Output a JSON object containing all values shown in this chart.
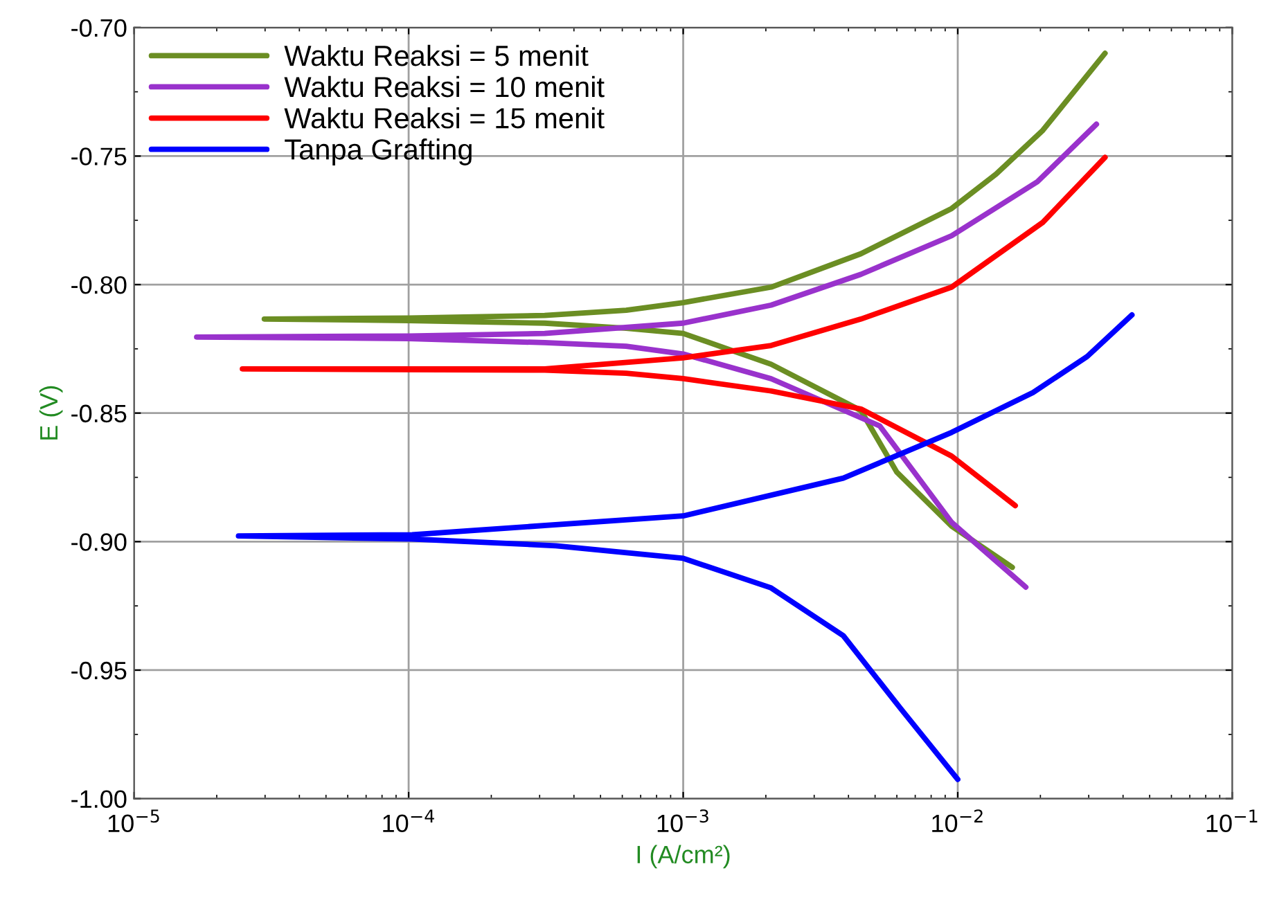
{
  "chart_data": {
    "type": "line",
    "xlabel": "I (A/cm²)",
    "ylabel": "E (V)",
    "log": "x",
    "grid": true,
    "legend": "top left",
    "line_style": "solid",
    "marker": "none",
    "xlim": [
      1e-05,
      0.1
    ],
    "xticks": [
      {
        "value": 1e-05,
        "label": "10$^{−5}$"
      },
      {
        "value": 0.0001,
        "label": "10$^{−4}$"
      },
      {
        "value": 0.001,
        "label": "10$^{−3}$"
      },
      {
        "value": 0.01,
        "label": "10$^{−2}$"
      },
      {
        "value": 0.1,
        "label": "10$^{−1}$"
      }
    ],
    "ylim": [
      -1.0,
      -0.7
    ],
    "yticks": [
      {
        "value": -1.0,
        "label": "-1.00"
      },
      {
        "value": -0.95,
        "label": "-0.95"
      },
      {
        "value": -0.9,
        "label": "-0.90"
      },
      {
        "value": -0.85,
        "label": "-0.85"
      },
      {
        "value": -0.8,
        "label": "-0.80"
      },
      {
        "value": -0.75,
        "label": "-0.75"
      },
      {
        "value": -0.7,
        "label": "-0.70"
      }
    ],
    "series": [
      {
        "name": "Waktu Reaksi = 5 menit",
        "color": "#6b8e23",
        "x": [
          0.0158,
          0.0095,
          0.006,
          0.00444,
          0.00209,
          0.001,
          0.00062,
          0.000313,
          0.0001,
          2.98e-05,
          0.0001,
          0.000313,
          0.00062,
          0.001,
          0.00209,
          0.00444,
          0.0095,
          0.0138,
          0.0204,
          0.0344
        ],
        "values": [
          -0.91,
          -0.894,
          -0.873,
          -0.849,
          -0.831,
          -0.819,
          -0.817,
          -0.815,
          -0.814,
          -0.8134,
          -0.813,
          -0.812,
          -0.81,
          -0.807,
          -0.801,
          -0.788,
          -0.7704,
          -0.757,
          -0.74,
          -0.71
        ]
      },
      {
        "name": "Waktu Reaksi = 10 menit",
        "color": "#9932cc",
        "x": [
          0.0177,
          0.0095,
          0.0052,
          0.00209,
          0.001,
          0.00062,
          0.000313,
          0.0001,
          1.69e-05,
          0.0001,
          0.000313,
          0.001,
          0.00209,
          0.00444,
          0.0095,
          0.0195,
          0.032
        ],
        "values": [
          -0.9177,
          -0.8925,
          -0.855,
          -0.8366,
          -0.827,
          -0.824,
          -0.8226,
          -0.821,
          -0.8204,
          -0.82,
          -0.819,
          -0.815,
          -0.808,
          -0.796,
          -0.781,
          -0.76,
          -0.7376
        ]
      },
      {
        "name": "Waktu Reaksi = 15 menit",
        "color": "#ff0000",
        "x": [
          0.0162,
          0.0095,
          0.00444,
          0.00209,
          0.001,
          0.00062,
          0.000313,
          2.48e-05,
          0.000313,
          0.001,
          0.00209,
          0.00444,
          0.0095,
          0.0204,
          0.0344
        ],
        "values": [
          -0.886,
          -0.8667,
          -0.8484,
          -0.8414,
          -0.8366,
          -0.8345,
          -0.8333,
          -0.8328,
          -0.8328,
          -0.8285,
          -0.8237,
          -0.8134,
          -0.801,
          -0.7758,
          -0.7505
        ]
      },
      {
        "name": "Tanpa Grafting",
        "color": "#0000ff",
        "x": [
          0.01,
          0.0062,
          0.00383,
          0.00209,
          0.001,
          0.000344,
          0.000103,
          2.4e-05,
          0.000103,
          0.001,
          0.00383,
          0.0095,
          0.0188,
          0.0296,
          0.0431
        ],
        "values": [
          -0.9925,
          -0.965,
          -0.9366,
          -0.918,
          -0.9065,
          -0.9016,
          -0.899,
          -0.8978,
          -0.8973,
          -0.89,
          -0.8753,
          -0.8575,
          -0.842,
          -0.828,
          -0.8118
        ]
      }
    ]
  }
}
